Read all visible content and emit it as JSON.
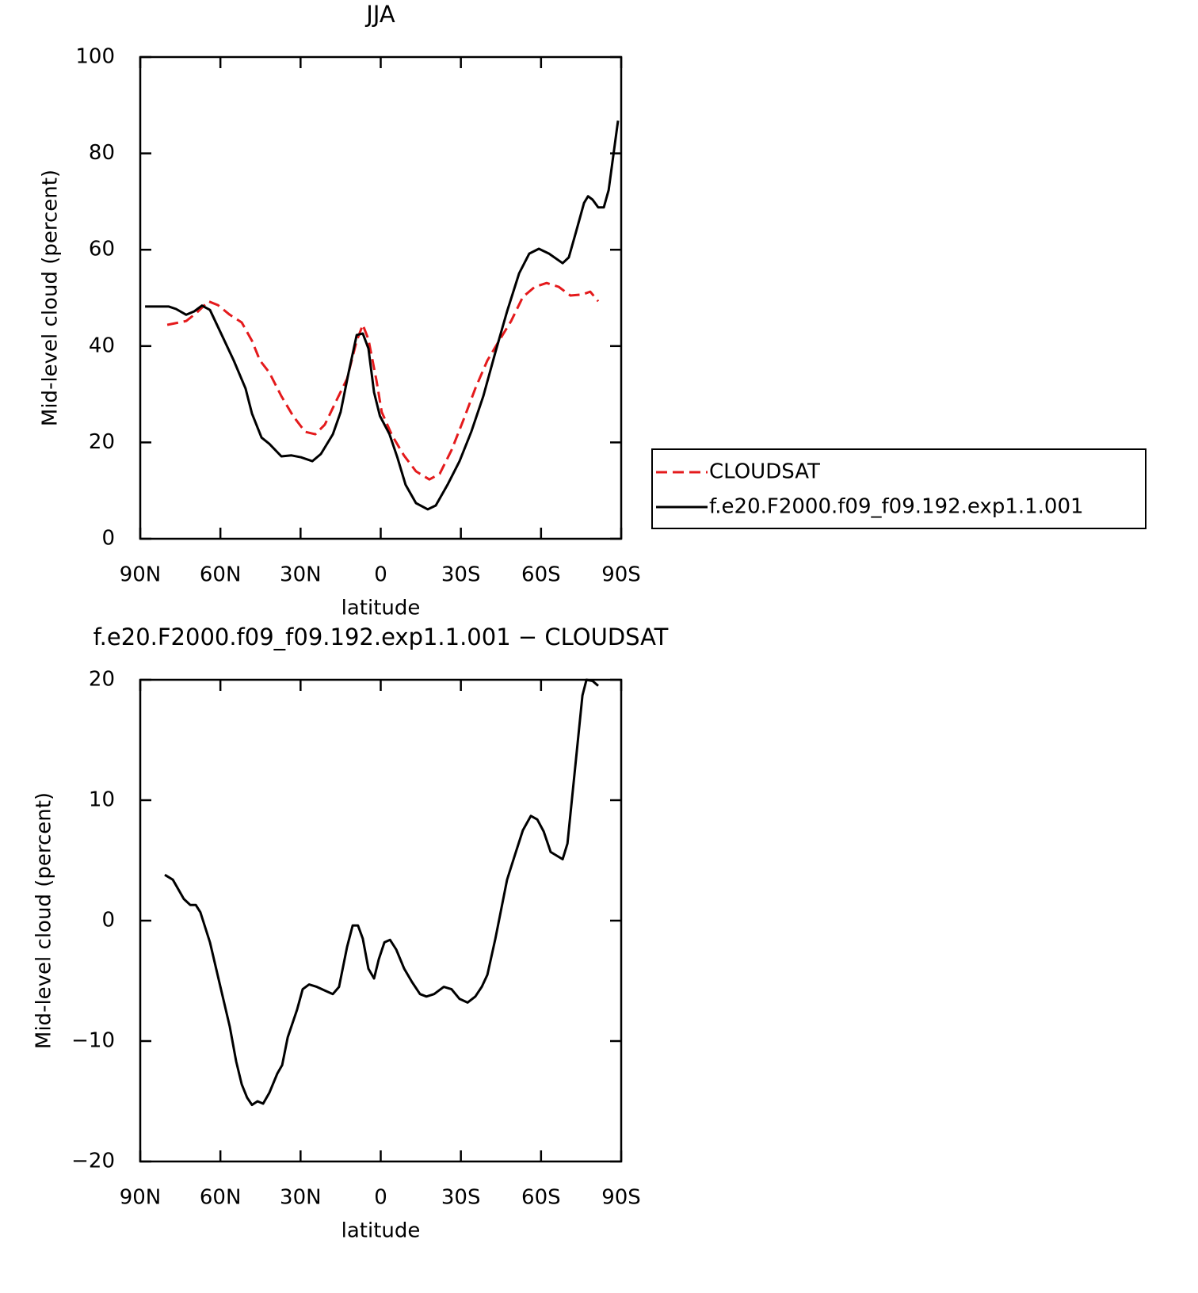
{
  "chart_data": [
    {
      "type": "line",
      "title": "JJA",
      "xlabel": "latitude",
      "ylabel": "Mid-level cloud (percent)",
      "xlim": [
        90,
        -90
      ],
      "xticks": [
        {
          "value": 90,
          "label": "90N"
        },
        {
          "value": 60,
          "label": "60N"
        },
        {
          "value": 30,
          "label": "30N"
        },
        0,
        {
          "value": -30,
          "label": "30S"
        },
        {
          "value": -60,
          "label": "60S"
        },
        {
          "value": -90,
          "label": "90S"
        }
      ],
      "ylim": [
        0,
        100
      ],
      "yticks": [
        0,
        20,
        40,
        60,
        80,
        100
      ],
      "legend": "right",
      "series": [
        {
          "name": "CLOUDSAT",
          "color": "#e41a1c",
          "linestyle": "dashed",
          "x": [
            79.9,
            72.8,
            68.9,
            64.5,
            60.9,
            56.5,
            52,
            48.2,
            45.2,
            41.7,
            37.2,
            32.8,
            28.3,
            24.5,
            20.9,
            16.5,
            12.6,
            9,
            6.7,
            4.6,
            1.6,
            -0.4,
            -4.3,
            -8.7,
            -13.2,
            -18.2,
            -22.1,
            -26.5,
            -31,
            -35.4,
            -39.9,
            -44.3,
            -48.8,
            -53.2,
            -57.7,
            -62.1,
            -66.6,
            -71,
            -75.5,
            -78.4,
            -81.4
          ],
          "values": [
            44.4,
            45.2,
            46.9,
            49.3,
            48.5,
            46.5,
            44.9,
            41.1,
            37,
            34.5,
            29.6,
            25.5,
            22.2,
            21.7,
            23.7,
            28.8,
            33.2,
            41.1,
            44.4,
            41.4,
            32.9,
            26.3,
            21.4,
            17.3,
            14,
            12.3,
            13.5,
            18.4,
            24.7,
            31.2,
            37,
            41.1,
            45.2,
            50.2,
            52.3,
            53.1,
            52.3,
            50.5,
            50.7,
            51.3,
            49.3
          ]
        },
        {
          "name": "f.e20.F2000.f09_f09.192.exp1.1.001",
          "color": "#000000",
          "linestyle": "solid",
          "x": [
            88.2,
            79.3,
            76.6,
            72.8,
            69.8,
            66.9,
            63.9,
            59.5,
            55,
            50.6,
            48.2,
            44.6,
            41.7,
            37.2,
            33.4,
            29.8,
            25.6,
            22.4,
            17.9,
            15,
            12,
            9,
            6.7,
            4.6,
            2.5,
            0.3,
            -3.3,
            -6.3,
            -9.3,
            -13.2,
            -17.6,
            -20.6,
            -25,
            -29.5,
            -33.9,
            -38.4,
            -42.9,
            -47.3,
            -51.8,
            -55.6,
            -59.2,
            -63,
            -68.1,
            -70.4,
            -73.1,
            -76.1,
            -77.6,
            -79.3,
            -81.4,
            -83.5,
            -85.3,
            -88.8
          ],
          "values": [
            48.2,
            48.2,
            47.7,
            46.5,
            47.2,
            48.4,
            47.5,
            42.3,
            37,
            31.2,
            26,
            21,
            19.7,
            17.1,
            17.3,
            16.9,
            16.1,
            17.6,
            21.7,
            26.3,
            34.5,
            42.3,
            42.6,
            39.5,
            30.4,
            25.5,
            21.7,
            16.8,
            11.2,
            7.4,
            6.1,
            6.9,
            11.2,
            16.1,
            22.2,
            29.6,
            38.7,
            47.2,
            55.1,
            59.2,
            60.2,
            59.2,
            57.2,
            58.4,
            63.7,
            69.7,
            71.1,
            70.4,
            68.8,
            68.8,
            72.4,
            86.8
          ]
        }
      ]
    },
    {
      "type": "line",
      "title": "f.e20.F2000.f09_f09.192.exp1.1.001 − CLOUDSAT",
      "xlabel": "latitude",
      "ylabel": "Mid-level cloud (percent)",
      "xlim": [
        90,
        -90
      ],
      "xticks": [
        {
          "value": 90,
          "label": "90N"
        },
        {
          "value": 60,
          "label": "60N"
        },
        {
          "value": 30,
          "label": "30N"
        },
        0,
        {
          "value": -30,
          "label": "30S"
        },
        {
          "value": -60,
          "label": "60S"
        },
        {
          "value": -90,
          "label": "90S"
        }
      ],
      "ylim": [
        -20,
        20
      ],
      "yticks": [
        {
          "value": -20,
          "label": "−20"
        },
        {
          "value": -10,
          "label": "−10"
        },
        0,
        10,
        20
      ],
      "series": [
        {
          "color": "#000000",
          "linestyle": "solid",
          "x": [
            80.8,
            77.8,
            73.7,
            71.3,
            69.2,
            67.5,
            63.9,
            60,
            56.5,
            54.1,
            52,
            50,
            48.2,
            46.1,
            44,
            41.7,
            38.7,
            36.9,
            34.8,
            31.3,
            29.2,
            26.8,
            23.9,
            20.9,
            17.9,
            15.6,
            12.6,
            10.5,
            8.5,
            6.7,
            4.6,
            2.5,
            0.7,
            -1.4,
            -3.5,
            -5.8,
            -8.8,
            -11.7,
            -14.7,
            -17.1,
            -20,
            -23.6,
            -26.5,
            -29.5,
            -32.5,
            -35.4,
            -37.8,
            -39.9,
            -42.9,
            -47.3,
            -50.3,
            -53.2,
            -56.2,
            -58.6,
            -61,
            -63.6,
            -68.1,
            -69.9,
            -75.5,
            -77,
            -79.3,
            -81.4
          ],
          "values": [
            3.8,
            3.4,
            1.8,
            1.3,
            1.3,
            0.7,
            -1.8,
            -5.5,
            -8.8,
            -11.7,
            -13.6,
            -14.7,
            -15.3,
            -15,
            -15.2,
            -14.3,
            -12.7,
            -12,
            -9.7,
            -7.4,
            -5.7,
            -5.3,
            -5.5,
            -5.8,
            -6.1,
            -5.5,
            -2.2,
            -0.4,
            -0.4,
            -1.5,
            -4,
            -4.8,
            -3.2,
            -1.8,
            -1.6,
            -2.4,
            -4,
            -5.1,
            -6.1,
            -6.3,
            -6.1,
            -5.5,
            -5.7,
            -6.5,
            -6.8,
            -6.3,
            -5.5,
            -4.5,
            -1.5,
            3.4,
            5.5,
            7.5,
            8.7,
            8.4,
            7.4,
            5.7,
            5.1,
            6.4,
            18.7,
            20,
            19.9,
            19.5
          ]
        }
      ]
    }
  ]
}
